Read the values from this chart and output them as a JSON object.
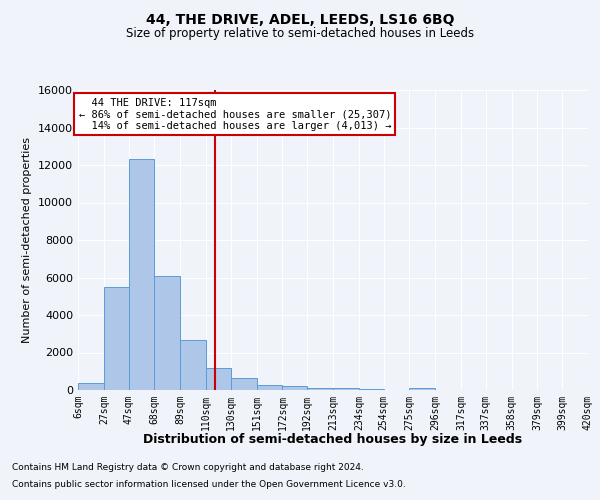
{
  "title": "44, THE DRIVE, ADEL, LEEDS, LS16 6BQ",
  "subtitle": "Size of property relative to semi-detached houses in Leeds",
  "ylabel": "Number of semi-detached properties",
  "xlabel": "Distribution of semi-detached houses by size in Leeds",
  "footnote1": "Contains HM Land Registry data © Crown copyright and database right 2024.",
  "footnote2": "Contains public sector information licensed under the Open Government Licence v3.0.",
  "property_size": 117,
  "property_label": "44 THE DRIVE: 117sqm",
  "pct_smaller": 86,
  "n_smaller": 25307,
  "pct_larger": 14,
  "n_larger": 4013,
  "bin_edges": [
    6,
    27,
    47,
    68,
    89,
    110,
    130,
    151,
    172,
    192,
    213,
    234,
    254,
    275,
    296,
    317,
    337,
    358,
    379,
    399,
    420
  ],
  "bar_heights": [
    390,
    5500,
    12300,
    6100,
    2650,
    1150,
    620,
    290,
    190,
    130,
    90,
    50,
    0,
    100,
    0,
    0,
    0,
    0,
    0,
    0
  ],
  "bar_color": "#aec6e8",
  "bar_edge_color": "#5b9bd5",
  "red_line_color": "#cc0000",
  "background_color": "#f0f4fa",
  "grid_color": "#ffffff",
  "annotation_box_color": "#ffffff",
  "annotation_box_edge": "#cc0000",
  "ylim": [
    0,
    16000
  ],
  "yticks": [
    0,
    2000,
    4000,
    6000,
    8000,
    10000,
    12000,
    14000,
    16000
  ]
}
